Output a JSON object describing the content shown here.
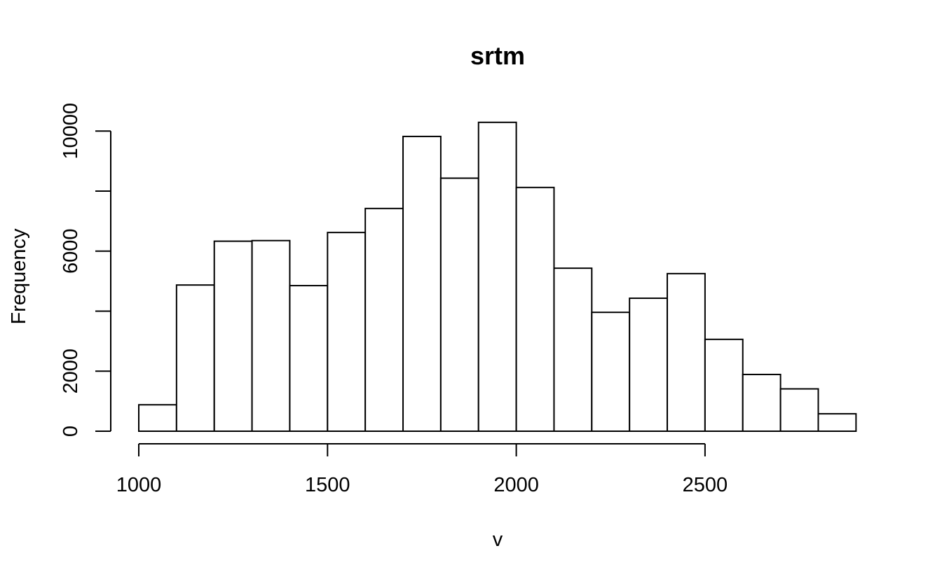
{
  "chart_data": {
    "type": "bar",
    "title": "srtm",
    "xlabel": "v",
    "ylabel": "Frequency",
    "bin_width": 100,
    "bins": [
      {
        "start": 1000,
        "end": 1100,
        "count": 880
      },
      {
        "start": 1100,
        "end": 1200,
        "count": 4870
      },
      {
        "start": 1200,
        "end": 1300,
        "count": 6330
      },
      {
        "start": 1300,
        "end": 1400,
        "count": 6350
      },
      {
        "start": 1400,
        "end": 1500,
        "count": 4850
      },
      {
        "start": 1500,
        "end": 1600,
        "count": 6620
      },
      {
        "start": 1600,
        "end": 1700,
        "count": 7420
      },
      {
        "start": 1700,
        "end": 1800,
        "count": 9820
      },
      {
        "start": 1800,
        "end": 1900,
        "count": 8430
      },
      {
        "start": 1900,
        "end": 2000,
        "count": 10290
      },
      {
        "start": 2000,
        "end": 2100,
        "count": 8120
      },
      {
        "start": 2100,
        "end": 2200,
        "count": 5430
      },
      {
        "start": 2200,
        "end": 2300,
        "count": 3960
      },
      {
        "start": 2300,
        "end": 2400,
        "count": 4430
      },
      {
        "start": 2400,
        "end": 2500,
        "count": 5250
      },
      {
        "start": 2500,
        "end": 2600,
        "count": 3060
      },
      {
        "start": 2600,
        "end": 2700,
        "count": 1890
      },
      {
        "start": 2700,
        "end": 2800,
        "count": 1410
      },
      {
        "start": 2800,
        "end": 2900,
        "count": 580
      }
    ],
    "x_ticks": [
      1000,
      1500,
      2000,
      2500
    ],
    "y_ticks": [
      0,
      2000,
      4000,
      6000,
      8000,
      10000
    ],
    "y_tick_labels": [
      "0",
      "2000",
      "",
      "6000",
      "",
      "10000"
    ],
    "xlim": [
      1000,
      2900
    ],
    "ylim": [
      0,
      10000
    ],
    "grid": false
  }
}
